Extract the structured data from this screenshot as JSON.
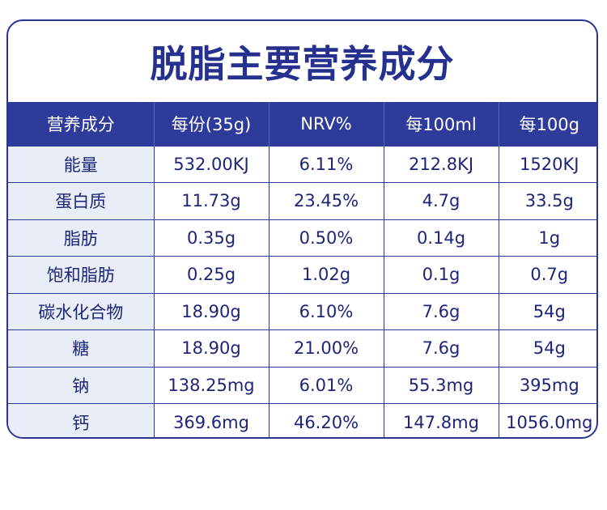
{
  "title": "脱脂主要营养成分",
  "table": {
    "headers": [
      "营养成分",
      "每份(35g)",
      "NRV%",
      "每100ml",
      "每100g"
    ],
    "rows": [
      [
        "能量",
        "532.00KJ",
        "6.11%",
        "212.8KJ",
        "1520KJ"
      ],
      [
        "蛋白质",
        "11.73g",
        "23.45%",
        "4.7g",
        "33.5g"
      ],
      [
        "脂肪",
        "0.35g",
        "0.50%",
        "0.14g",
        "1g"
      ],
      [
        "饱和脂肪",
        "0.25g",
        "1.02g",
        "0.1g",
        "0.7g"
      ],
      [
        "碳水化合物",
        "18.90g",
        "6.10%",
        "7.6g",
        "54g"
      ],
      [
        "糖",
        "18.90g",
        "21.00%",
        "7.6g",
        "54g"
      ],
      [
        "钠",
        "138.25mg",
        "6.01%",
        "55.3mg",
        "395mg"
      ],
      [
        "钙",
        "369.6mg",
        "46.20%",
        "147.8mg",
        "1056.0mg"
      ]
    ]
  },
  "colors": {
    "accent": "#2f3b9b",
    "title": "#25308f",
    "label_bg": "#e9edf8"
  }
}
